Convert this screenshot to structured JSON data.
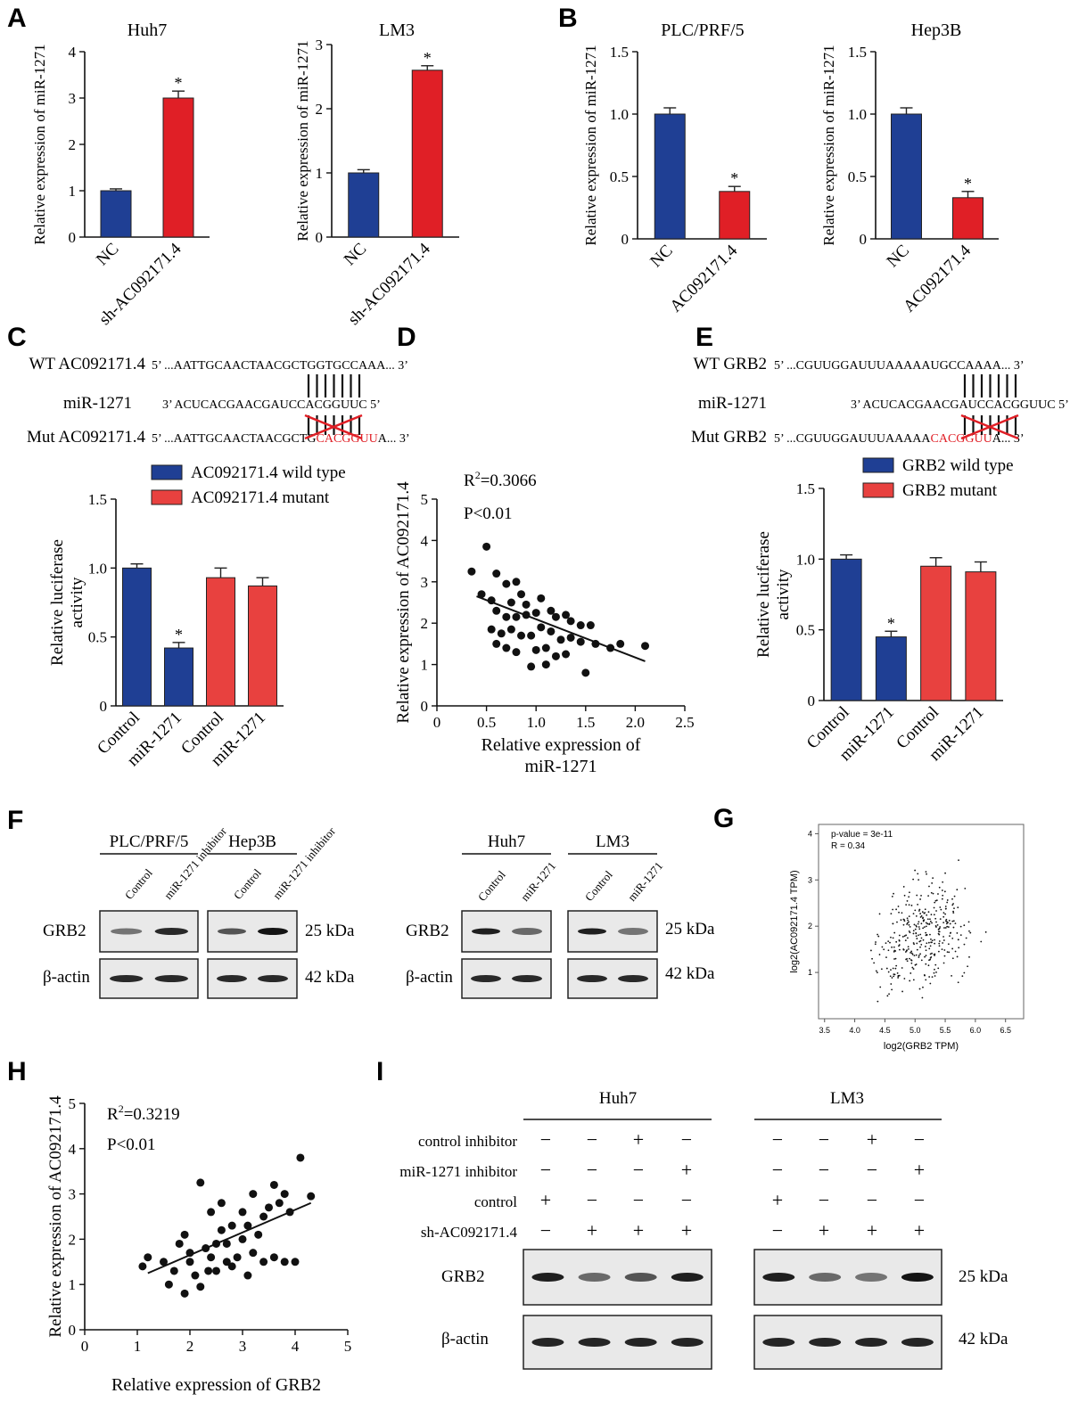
{
  "colors": {
    "blue": "#1f3f94",
    "red": "#e01f26",
    "red_light": "#e8413f",
    "line": "#111111"
  },
  "panel_labels": [
    "A",
    "B",
    "C",
    "D",
    "E",
    "F",
    "G",
    "H",
    "I"
  ],
  "chart_data": [
    {
      "id": "A1",
      "type": "bar",
      "title": "Huh7",
      "ylabel": "Relative expression of miR-1271",
      "categories": [
        "NC",
        "sh-AC092171.4"
      ],
      "values": [
        1.0,
        3.0
      ],
      "errors": [
        0.04,
        0.15
      ],
      "colors": [
        "#1f3f94",
        "#e01f26"
      ],
      "sig": [
        "",
        "*"
      ],
      "ylim": [
        0,
        4
      ],
      "yticks": [
        "0",
        "1",
        "2",
        "3",
        "4"
      ]
    },
    {
      "id": "A2",
      "type": "bar",
      "title": "LM3",
      "ylabel": "Relative expression of miR-1271",
      "categories": [
        "NC",
        "sh-AC092171.4"
      ],
      "values": [
        1.0,
        2.6
      ],
      "errors": [
        0.05,
        0.07
      ],
      "colors": [
        "#1f3f94",
        "#e01f26"
      ],
      "sig": [
        "",
        "*"
      ],
      "ylim": [
        0,
        3
      ],
      "yticks": [
        "0",
        "1",
        "2",
        "3"
      ]
    },
    {
      "id": "B1",
      "type": "bar",
      "title": "PLC/PRF/5",
      "ylabel": "Relative expression of miR-1271",
      "categories": [
        "NC",
        "AC092171.4"
      ],
      "values": [
        1.0,
        0.38
      ],
      "errors": [
        0.05,
        0.04
      ],
      "colors": [
        "#1f3f94",
        "#e01f26"
      ],
      "sig": [
        "",
        "*"
      ],
      "ylim": [
        0,
        1.5
      ],
      "yticks": [
        "0",
        "0.5",
        "1.0",
        "1.5"
      ]
    },
    {
      "id": "B2",
      "type": "bar",
      "title": "Hep3B",
      "ylabel": "Relative expression of miR-1271",
      "categories": [
        "NC",
        "AC092171.4"
      ],
      "values": [
        1.0,
        0.33
      ],
      "errors": [
        0.05,
        0.05
      ],
      "colors": [
        "#1f3f94",
        "#e01f26"
      ],
      "sig": [
        "",
        "*"
      ],
      "ylim": [
        0,
        1.5
      ],
      "yticks": [
        "0",
        "0.5",
        "1.0",
        "1.5"
      ]
    },
    {
      "id": "C",
      "type": "bar",
      "title": "",
      "ylabel": "Relative luciferase activity",
      "categories": [
        "Control",
        "miR-1271",
        "Control",
        "miR-1271"
      ],
      "values": [
        1.0,
        0.42,
        0.93,
        0.87
      ],
      "errors": [
        0.03,
        0.04,
        0.07,
        0.06
      ],
      "colors": [
        "#1f3f94",
        "#1f3f94",
        "#e8413f",
        "#e8413f"
      ],
      "sig": [
        "",
        "*",
        "",
        ""
      ],
      "ylim": [
        0,
        1.5
      ],
      "yticks": [
        "0",
        "0.5",
        "1.0",
        "1.5"
      ],
      "legend": [
        "AC092171.4 wild type",
        "AC092171.4  mutant"
      ]
    },
    {
      "id": "E",
      "type": "bar",
      "title": "",
      "ylabel": "Relative luciferase activity",
      "categories": [
        "Control",
        "miR-1271",
        "Control",
        "miR-1271"
      ],
      "values": [
        1.0,
        0.45,
        0.95,
        0.91
      ],
      "errors": [
        0.03,
        0.04,
        0.06,
        0.07
      ],
      "colors": [
        "#1f3f94",
        "#1f3f94",
        "#e8413f",
        "#e8413f"
      ],
      "sig": [
        "",
        "*",
        "",
        ""
      ],
      "ylim": [
        0,
        1.5
      ],
      "yticks": [
        "0",
        "0.5",
        "1.0",
        "1.5"
      ],
      "legend": [
        "GRB2 wild type",
        "GRB2 mutant"
      ]
    },
    {
      "id": "D",
      "type": "scatter",
      "xlabel": "Relative expression of miR-1271",
      "ylabel": "Relative expression of AC092171.4",
      "xlim": [
        0,
        2.5
      ],
      "ylim": [
        0,
        5
      ],
      "xticks": [
        "0",
        "0.5",
        "1.0",
        "1.5",
        "2.0",
        "2.5"
      ],
      "yticks": [
        "0",
        "1",
        "2",
        "3",
        "4",
        "5"
      ],
      "annot_r2": "0.3066",
      "annot_p": "P<0.01",
      "fit": [
        [
          0.4,
          2.65
        ],
        [
          2.1,
          1.08
        ]
      ],
      "points": [
        [
          0.5,
          3.85
        ],
        [
          0.35,
          3.25
        ],
        [
          0.6,
          3.2
        ],
        [
          0.7,
          2.95
        ],
        [
          0.8,
          3.0
        ],
        [
          0.85,
          2.7
        ],
        [
          0.75,
          2.5
        ],
        [
          0.9,
          2.45
        ],
        [
          0.45,
          2.7
        ],
        [
          0.55,
          2.55
        ],
        [
          0.6,
          2.3
        ],
        [
          0.7,
          2.15
        ],
        [
          0.8,
          2.15
        ],
        [
          0.9,
          2.2
        ],
        [
          1.0,
          2.25
        ],
        [
          1.05,
          2.6
        ],
        [
          1.15,
          2.3
        ],
        [
          1.2,
          2.15
        ],
        [
          1.3,
          2.2
        ],
        [
          1.35,
          2.05
        ],
        [
          1.45,
          1.95
        ],
        [
          1.55,
          1.95
        ],
        [
          0.55,
          1.85
        ],
        [
          0.65,
          1.75
        ],
        [
          0.75,
          1.85
        ],
        [
          0.85,
          1.7
        ],
        [
          0.95,
          1.7
        ],
        [
          1.05,
          1.9
        ],
        [
          1.15,
          1.8
        ],
        [
          1.25,
          1.6
        ],
        [
          1.35,
          1.65
        ],
        [
          1.45,
          1.55
        ],
        [
          0.6,
          1.5
        ],
        [
          0.7,
          1.4
        ],
        [
          0.8,
          1.3
        ],
        [
          1.0,
          1.35
        ],
        [
          1.1,
          1.4
        ],
        [
          1.2,
          1.2
        ],
        [
          1.3,
          1.25
        ],
        [
          1.6,
          1.5
        ],
        [
          1.75,
          1.4
        ],
        [
          1.85,
          1.5
        ],
        [
          2.1,
          1.45
        ],
        [
          0.95,
          0.95
        ],
        [
          1.1,
          1.0
        ],
        [
          1.5,
          0.8
        ]
      ]
    },
    {
      "id": "H",
      "type": "scatter",
      "xlabel": "Relative expression of GRB2",
      "ylabel": "Relative expression of AC092171.4",
      "xlim": [
        0,
        5
      ],
      "ylim": [
        0,
        5
      ],
      "xticks": [
        "0",
        "1",
        "2",
        "3",
        "4",
        "5"
      ],
      "yticks": [
        "0",
        "1",
        "2",
        "3",
        "4",
        "5"
      ],
      "annot_r2": "0.3219",
      "annot_p": "P<0.01",
      "fit": [
        [
          1.2,
          1.25
        ],
        [
          4.3,
          2.8
        ]
      ],
      "points": [
        [
          1.1,
          1.4
        ],
        [
          1.2,
          1.6
        ],
        [
          1.5,
          1.5
        ],
        [
          1.6,
          1.0
        ],
        [
          1.7,
          1.3
        ],
        [
          1.8,
          1.9
        ],
        [
          1.9,
          2.1
        ],
        [
          2.0,
          1.5
        ],
        [
          2.1,
          1.2
        ],
        [
          2.2,
          3.25
        ],
        [
          1.9,
          0.8
        ],
        [
          2.2,
          0.95
        ],
        [
          2.3,
          1.8
        ],
        [
          2.4,
          1.6
        ],
        [
          2.5,
          1.9
        ],
        [
          2.4,
          2.6
        ],
        [
          2.6,
          2.2
        ],
        [
          2.7,
          1.9
        ],
        [
          2.8,
          2.3
        ],
        [
          2.5,
          1.3
        ],
        [
          2.7,
          1.5
        ],
        [
          2.8,
          1.4
        ],
        [
          2.9,
          1.6
        ],
        [
          3.0,
          2.0
        ],
        [
          3.1,
          2.3
        ],
        [
          3.2,
          1.7
        ],
        [
          3.3,
          2.1
        ],
        [
          3.4,
          2.5
        ],
        [
          3.5,
          2.7
        ],
        [
          3.6,
          3.2
        ],
        [
          3.7,
          2.8
        ],
        [
          3.8,
          3.0
        ],
        [
          3.9,
          2.6
        ],
        [
          3.0,
          2.6
        ],
        [
          2.6,
          2.8
        ],
        [
          3.2,
          3.0
        ],
        [
          3.4,
          1.5
        ],
        [
          3.8,
          1.5
        ],
        [
          4.0,
          1.5
        ],
        [
          4.1,
          3.8
        ],
        [
          4.3,
          2.95
        ],
        [
          2.0,
          1.7
        ],
        [
          3.1,
          1.2
        ],
        [
          2.35,
          1.3
        ],
        [
          3.6,
          1.6
        ]
      ]
    },
    {
      "id": "G",
      "type": "scatter",
      "xlabel": "log2(GRB2 TPM)",
      "ylabel": "log2(AC092171.4 TPM)",
      "xlim": [
        3.4,
        6.8
      ],
      "ylim": [
        0,
        4.2
      ],
      "xticks": [
        "3.5",
        "4.0",
        "4.5",
        "5.0",
        "5.5",
        "6.0",
        "6.5"
      ],
      "yticks": [
        "1",
        "2",
        "3",
        "4"
      ],
      "annot_p": "p-value = 3e-11",
      "annot_r": "R = 0.34"
    }
  ],
  "seq_C": {
    "wt_label": "WT AC092171.4",
    "wt_seq": "5’ ...AATTGCAACTAACGCTGGTGCCAAA... 3’",
    "mir_label": "miR-1271",
    "mir_seq": "3’ ACUCACGAACGAUCCACGGUUC 5’",
    "mut_label": "Mut AC092171.4",
    "mut_seq_a": "5’ ...AATTGCAACTAACGCTG",
    "mut_seq_b": "CACGGUU",
    "mut_seq_c": "A... 3’"
  },
  "seq_E": {
    "wt_label": "WT GRB2",
    "wt_seq": "5’ ...CGUUGGAUUUAAAAAUGCCAAAA... 3’",
    "mir_label": "miR-1271",
    "mir_seq": "3’ ACUCACGAACGAUCCACGGUUC 5’",
    "mut_label": "Mut GRB2",
    "mut_seq_a": "5’ ...CGUUGGAUUUAAAAA",
    "mut_seq_b": "CACGGUU",
    "mut_seq_c": "A... 3’"
  },
  "blot_F": {
    "left_groups": [
      "PLC/PRF/5",
      "Hep3B"
    ],
    "right_groups": [
      "Huh7",
      "LM3"
    ],
    "left_lanes": [
      "Control",
      "miR-1271 inhibitor"
    ],
    "right_lanes": [
      "Control",
      "miR-1271"
    ],
    "rows": [
      "GRB2",
      "β-actin"
    ],
    "sizes": [
      "25 kDa",
      "42 kDa"
    ]
  },
  "blot_I": {
    "groups": [
      "Huh7",
      "LM3"
    ],
    "conditions": [
      {
        "label": "control inhibitor",
        "marks": [
          "−",
          "−",
          "+",
          "−"
        ]
      },
      {
        "label": "miR-1271 inhibitor",
        "marks": [
          "−",
          "−",
          "−",
          "+"
        ]
      },
      {
        "label": "control",
        "marks": [
          "+",
          "−",
          "−",
          "−"
        ]
      },
      {
        "label": "sh-AC092171.4",
        "marks": [
          "−",
          "+",
          "+",
          "+"
        ]
      }
    ],
    "rows": [
      "GRB2",
      "β-actin"
    ],
    "sizes": [
      "25 kDa",
      "42 kDa"
    ]
  }
}
